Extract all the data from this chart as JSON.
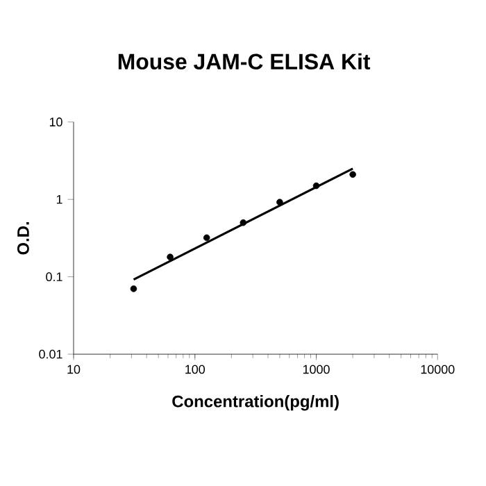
{
  "chart_data": {
    "type": "scatter",
    "title": "Mouse JAM-C ELISA Kit",
    "xlabel": "Concentration(pg/ml)",
    "ylabel": "O.D.",
    "log": "xy",
    "xlim": [
      10,
      10000
    ],
    "ylim": [
      0.01,
      10
    ],
    "xticks": [
      10,
      100,
      1000,
      10000
    ],
    "yticks": [
      0.01,
      0.1,
      1,
      10
    ],
    "grid": false,
    "marker": "circle",
    "series": [
      {
        "color": "#000000",
        "x": [
          31.25,
          62.5,
          125,
          250,
          500,
          1000,
          2000
        ],
        "values": [
          0.07,
          0.18,
          0.32,
          0.5,
          0.92,
          1.5,
          2.1
        ]
      },
      {
        "type": "line",
        "color": "#000000",
        "marker": "none",
        "x": [
          31.25,
          2000
        ],
        "values": [
          0.092,
          2.5
        ]
      }
    ]
  }
}
